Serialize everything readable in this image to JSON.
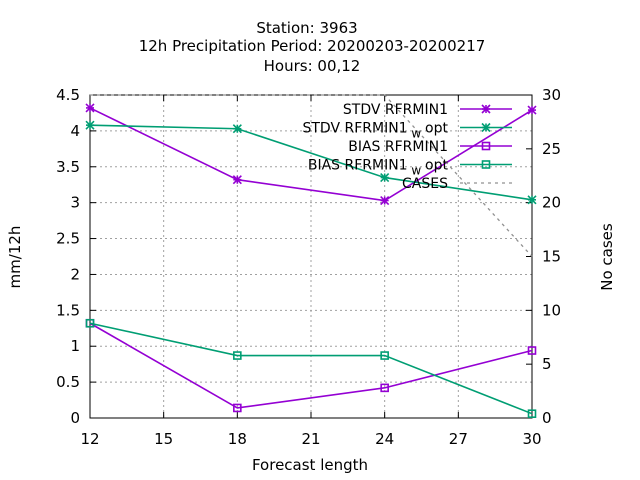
{
  "title": {
    "line1": "Station:      3963",
    "line2": "12h Precipitation    Period: 20200203-20200217",
    "line3": "Hours:  00,12"
  },
  "colors": {
    "purple": "#9400d3",
    "teal": "#009e73",
    "grey": "#909090",
    "grid": "#a0a0a0"
  },
  "chart_data": {
    "type": "line",
    "x": [
      12,
      18,
      24,
      30
    ],
    "xlabel": "Forecast length",
    "ylabel": "mm/12h",
    "y2label": "No cases",
    "xlim": [
      12,
      30
    ],
    "ylim": [
      0,
      4.5
    ],
    "y2lim": [
      0,
      30
    ],
    "xticks": [
      "12",
      "15",
      "18",
      "21",
      "24",
      "27",
      "30"
    ],
    "yticks": [
      "0",
      "0.5",
      "1",
      "1.5",
      "2",
      "2.5",
      "3",
      "3.5",
      "4",
      "4.5"
    ],
    "y2ticks": [
      "0",
      "5",
      "10",
      "15",
      "20",
      "25",
      "30"
    ],
    "grid": true,
    "legend_position": "top-right",
    "series": [
      {
        "name": "STDV RFRMIN1",
        "axis": "y",
        "color": "#9400d3",
        "marker": "star",
        "values": [
          4.32,
          3.32,
          3.03,
          4.29
        ]
      },
      {
        "name": "STDV RFRMIN1_w_opt",
        "axis": "y",
        "color": "#009e73",
        "marker": "star",
        "values": [
          4.08,
          4.03,
          3.35,
          3.04
        ]
      },
      {
        "name": "BIAS RFRMIN1",
        "axis": "y",
        "color": "#9400d3",
        "marker": "square",
        "values": [
          1.32,
          0.14,
          0.42,
          0.94
        ]
      },
      {
        "name": "BIAS RFRMIN1_w_opt",
        "axis": "y",
        "color": "#009e73",
        "marker": "square",
        "values": [
          1.32,
          0.87,
          0.87,
          0.06
        ]
      },
      {
        "name": "CASES",
        "axis": "y2",
        "color": "#909090",
        "marker": "none",
        "dashed": true,
        "values": [
          30,
          30,
          30,
          15
        ]
      }
    ]
  }
}
